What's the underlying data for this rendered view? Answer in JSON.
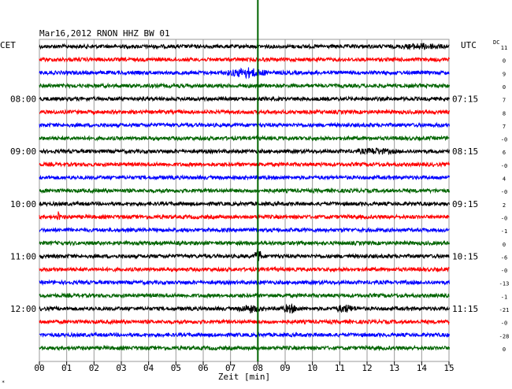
{
  "chart_data": {
    "type": "line",
    "title": "Mar16,2012  RNON HHZ BW 01",
    "left_axis_title": "CET",
    "right_axis_title": "UTC",
    "dc_label": "DC",
    "xlabel": "Zeit [min]",
    "xlim": [
      0,
      15
    ],
    "x_ticks": [
      "00",
      "01",
      "02",
      "03",
      "04",
      "05",
      "06",
      "07",
      "08",
      "09",
      "10",
      "11",
      "12",
      "13",
      "14",
      "15"
    ],
    "grid": true,
    "trace_count": 24,
    "trace_colors": [
      "#000000",
      "#ff0000",
      "#0000ff",
      "#006400"
    ],
    "left_time_labels": [
      {
        "trace": 4,
        "text": "08:00"
      },
      {
        "trace": 8,
        "text": "09:00"
      },
      {
        "trace": 12,
        "text": "10:00"
      },
      {
        "trace": 16,
        "text": "11:00"
      },
      {
        "trace": 20,
        "text": "12:00"
      }
    ],
    "right_time_labels": [
      {
        "trace": 4,
        "text": "07:15"
      },
      {
        "trace": 8,
        "text": "08:15"
      },
      {
        "trace": 12,
        "text": "09:15"
      },
      {
        "trace": 16,
        "text": "10:15"
      },
      {
        "trace": 20,
        "text": "11:15"
      }
    ],
    "dc_offsets": [
      "11",
      "0",
      "9",
      "0",
      "7",
      "8",
      "7",
      "-0",
      "6",
      "-0",
      "4",
      "-0",
      "2",
      "-0",
      "-1",
      "0",
      "-6",
      "-0",
      "-13",
      "-1",
      "-21",
      "-0",
      "-28",
      "0"
    ],
    "marker_line": {
      "x": 8.0,
      "color": "#006400"
    },
    "events": [
      {
        "trace": 2,
        "x": 7.6,
        "width": 0.9,
        "amp": 0.55
      },
      {
        "trace": 13,
        "x": 0.7,
        "width": 0.05,
        "amp": 1.0
      },
      {
        "trace": 16,
        "x": 8.0,
        "width": 0.15,
        "amp": 1.1
      },
      {
        "trace": 20,
        "x": 7.7,
        "width": 0.5,
        "amp": 0.45
      },
      {
        "trace": 20,
        "x": 9.2,
        "width": 0.4,
        "amp": 0.45
      },
      {
        "trace": 20,
        "x": 11.2,
        "width": 0.5,
        "amp": 0.4
      },
      {
        "trace": 8,
        "x": 12.3,
        "width": 0.8,
        "amp": 0.3
      },
      {
        "trace": 0,
        "x": 14.0,
        "width": 1.0,
        "amp": 0.25
      }
    ]
  },
  "corner_mark": "*"
}
